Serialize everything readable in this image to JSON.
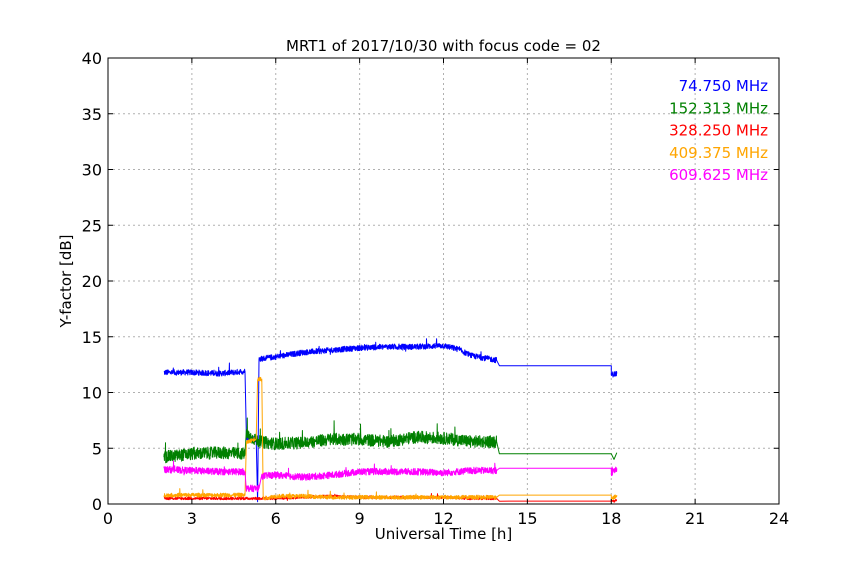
{
  "chart_data": {
    "type": "line",
    "title": "MRT1 of 2017/10/30 with focus code = 02",
    "xlabel": "Universal Time [h]",
    "ylabel": "Y-factor [dB]",
    "xlim": [
      0,
      24
    ],
    "ylim": [
      0,
      40
    ],
    "xticks": [
      0,
      3,
      6,
      9,
      12,
      15,
      18,
      21,
      24
    ],
    "yticks": [
      0,
      5,
      10,
      15,
      20,
      25,
      30,
      35,
      40
    ],
    "grid": true,
    "legend_position": "top-right",
    "series": [
      {
        "name": "74.750 MHz",
        "color": "#0000ff",
        "noise": 0.25,
        "points": [
          [
            2.0,
            11.8
          ],
          [
            3.0,
            11.8
          ],
          [
            4.0,
            11.7
          ],
          [
            4.9,
            11.9
          ],
          [
            4.95,
            6.0
          ],
          [
            5.3,
            5.8
          ],
          [
            5.35,
            0.2
          ],
          [
            5.4,
            13.0
          ],
          [
            6.0,
            13.2
          ],
          [
            7.0,
            13.6
          ],
          [
            8.0,
            13.8
          ],
          [
            9.0,
            14.0
          ],
          [
            10.0,
            14.1
          ],
          [
            11.0,
            14.1
          ],
          [
            12.0,
            14.2
          ],
          [
            12.5,
            13.9
          ],
          [
            13.0,
            13.3
          ],
          [
            13.9,
            12.9
          ],
          [
            14.0,
            12.4
          ],
          [
            18.0,
            12.4
          ],
          [
            18.0,
            11.6
          ],
          [
            18.2,
            11.7
          ]
        ]
      },
      {
        "name": "152.313 MHz",
        "color": "#008000",
        "noise": 0.55,
        "points": [
          [
            2.0,
            4.2
          ],
          [
            3.0,
            4.5
          ],
          [
            4.0,
            4.6
          ],
          [
            4.9,
            4.5
          ],
          [
            4.95,
            6.2
          ],
          [
            5.4,
            5.6
          ],
          [
            6.0,
            5.4
          ],
          [
            7.0,
            5.5
          ],
          [
            8.0,
            5.8
          ],
          [
            9.0,
            5.8
          ],
          [
            10.0,
            5.6
          ],
          [
            11.0,
            6.0
          ],
          [
            12.0,
            5.9
          ],
          [
            13.0,
            5.6
          ],
          [
            13.9,
            5.6
          ],
          [
            14.0,
            4.5
          ],
          [
            18.0,
            4.5
          ],
          [
            18.1,
            4.0
          ],
          [
            18.2,
            4.6
          ]
        ]
      },
      {
        "name": "328.250 MHz",
        "color": "#ff0000",
        "noise": 0.12,
        "points": [
          [
            2.0,
            0.5
          ],
          [
            3.0,
            0.5
          ],
          [
            4.0,
            0.5
          ],
          [
            4.9,
            0.5
          ],
          [
            5.3,
            0.5
          ],
          [
            6.0,
            0.5
          ],
          [
            7.0,
            0.6
          ],
          [
            8.0,
            0.7
          ],
          [
            9.0,
            0.6
          ],
          [
            10.0,
            0.6
          ],
          [
            11.0,
            0.6
          ],
          [
            12.0,
            0.6
          ],
          [
            13.0,
            0.5
          ],
          [
            13.9,
            0.5
          ],
          [
            14.0,
            0.25
          ],
          [
            18.0,
            0.25
          ],
          [
            18.2,
            0.3
          ]
        ]
      },
      {
        "name": "409.375 MHz",
        "color": "#ffa500",
        "noise": 0.18,
        "points": [
          [
            2.0,
            0.8
          ],
          [
            3.0,
            0.8
          ],
          [
            4.0,
            0.8
          ],
          [
            4.9,
            0.8
          ],
          [
            4.95,
            5.5
          ],
          [
            5.3,
            5.9
          ],
          [
            5.35,
            11.2
          ],
          [
            5.5,
            11.2
          ],
          [
            5.55,
            0.5
          ],
          [
            6.0,
            0.7
          ],
          [
            7.0,
            0.7
          ],
          [
            8.0,
            0.6
          ],
          [
            9.0,
            0.6
          ],
          [
            10.0,
            0.6
          ],
          [
            11.0,
            0.6
          ],
          [
            12.0,
            0.6
          ],
          [
            13.0,
            0.6
          ],
          [
            13.9,
            0.6
          ],
          [
            14.0,
            0.8
          ],
          [
            18.0,
            0.8
          ],
          [
            18.0,
            0.4
          ],
          [
            18.2,
            0.8
          ]
        ]
      },
      {
        "name": "609.625 MHz",
        "color": "#ff00ff",
        "noise": 0.3,
        "points": [
          [
            2.0,
            3.1
          ],
          [
            3.0,
            3.0
          ],
          [
            4.0,
            2.9
          ],
          [
            4.9,
            2.9
          ],
          [
            4.95,
            1.4
          ],
          [
            5.4,
            1.4
          ],
          [
            5.5,
            2.5
          ],
          [
            6.0,
            2.6
          ],
          [
            7.0,
            2.4
          ],
          [
            8.0,
            2.6
          ],
          [
            9.0,
            2.9
          ],
          [
            10.0,
            2.9
          ],
          [
            11.0,
            2.9
          ],
          [
            12.0,
            2.8
          ],
          [
            13.0,
            3.0
          ],
          [
            13.9,
            3.0
          ],
          [
            14.0,
            3.2
          ],
          [
            18.0,
            3.2
          ],
          [
            18.0,
            2.8
          ],
          [
            18.2,
            3.2
          ]
        ]
      }
    ]
  }
}
